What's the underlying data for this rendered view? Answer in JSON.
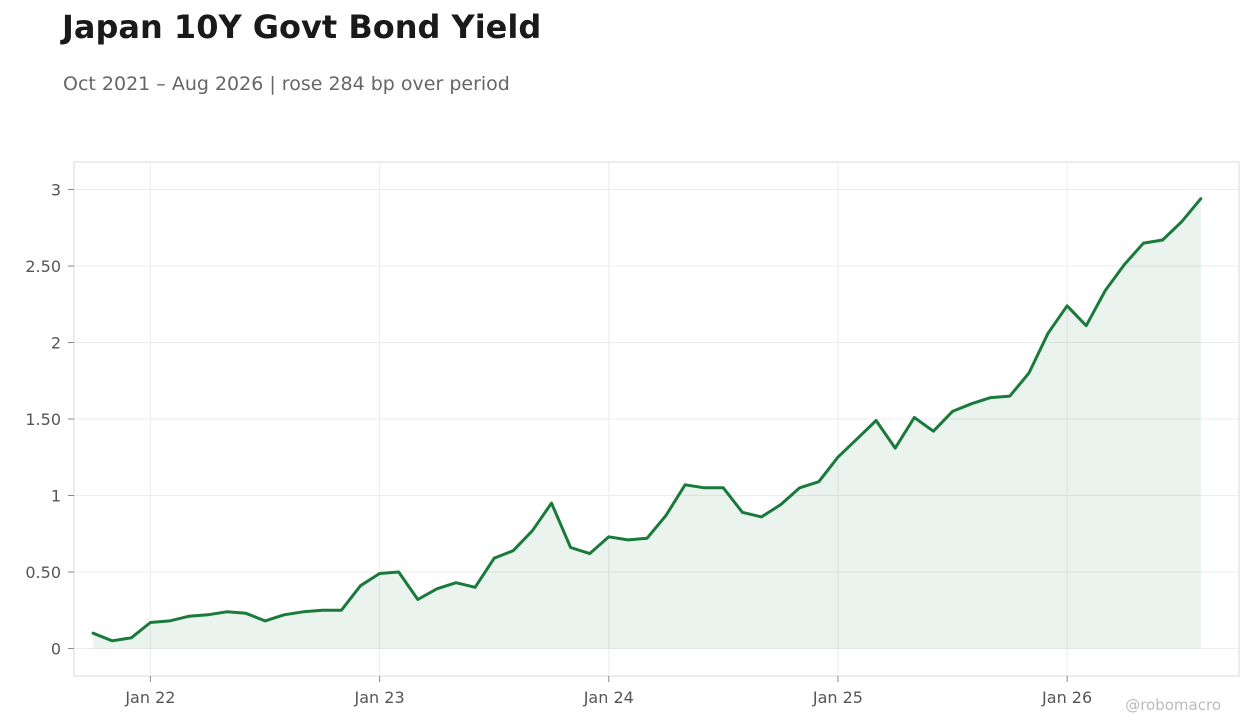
{
  "title": "Japan 10Y Govt Bond Yield",
  "subtitle": "Oct 2021 – Aug 2026 | rose 284 bp over period",
  "watermark": "@robomacro",
  "colors": {
    "line": "#1a7a3c",
    "fill": "#1a7a3c",
    "grid": "#ececec",
    "axis": "#d9d9d9",
    "text": "#555555"
  },
  "chart_data": {
    "type": "area",
    "title": "Japan 10Y Govt Bond Yield",
    "subtitle": "Oct 2021 – Aug 2026 | rose 284 bp over period",
    "xlabel": "",
    "ylabel": "",
    "x_ticks": [
      "Jan 22",
      "Jan 23",
      "Jan 24",
      "Jan 25",
      "Jan 26"
    ],
    "y_ticks": [
      "0",
      "0.50",
      "1",
      "1.50",
      "2",
      "2.50",
      "3"
    ],
    "ylim": [
      -0.18,
      3.18
    ],
    "xlim": [
      "2021-09",
      "2026-10"
    ],
    "grid": true,
    "legend": "none",
    "series": [
      {
        "x": [
          "2021-10",
          "2021-11",
          "2021-12",
          "2022-01",
          "2022-02",
          "2022-03",
          "2022-04",
          "2022-05",
          "2022-06",
          "2022-07",
          "2022-08",
          "2022-09",
          "2022-10",
          "2022-11",
          "2022-12",
          "2023-01",
          "2023-02",
          "2023-03",
          "2023-04",
          "2023-05",
          "2023-06",
          "2023-07",
          "2023-08",
          "2023-09",
          "2023-10",
          "2023-11",
          "2023-12",
          "2024-01",
          "2024-02",
          "2024-03",
          "2024-04",
          "2024-05",
          "2024-06",
          "2024-07",
          "2024-08",
          "2024-09",
          "2024-10",
          "2024-11",
          "2024-12",
          "2025-01",
          "2025-02",
          "2025-03",
          "2025-04",
          "2025-05",
          "2025-06",
          "2025-07",
          "2025-08",
          "2025-09",
          "2025-10",
          "2025-11",
          "2025-12",
          "2026-01",
          "2026-02",
          "2026-03",
          "2026-04",
          "2026-05",
          "2026-06",
          "2026-07",
          "2026-08"
        ],
        "values": [
          0.1,
          0.05,
          0.07,
          0.17,
          0.18,
          0.21,
          0.22,
          0.24,
          0.23,
          0.18,
          0.22,
          0.24,
          0.25,
          0.25,
          0.41,
          0.49,
          0.5,
          0.32,
          0.39,
          0.43,
          0.4,
          0.59,
          0.64,
          0.77,
          0.95,
          0.66,
          0.62,
          0.73,
          0.71,
          0.72,
          0.87,
          1.07,
          1.05,
          1.05,
          0.89,
          0.86,
          0.94,
          1.05,
          1.09,
          1.25,
          1.37,
          1.49,
          1.31,
          1.51,
          1.42,
          1.55,
          1.6,
          1.64,
          1.65,
          1.8,
          2.06,
          2.24,
          2.11,
          2.34,
          2.51,
          2.65,
          2.67,
          2.79,
          2.94
        ]
      }
    ]
  }
}
